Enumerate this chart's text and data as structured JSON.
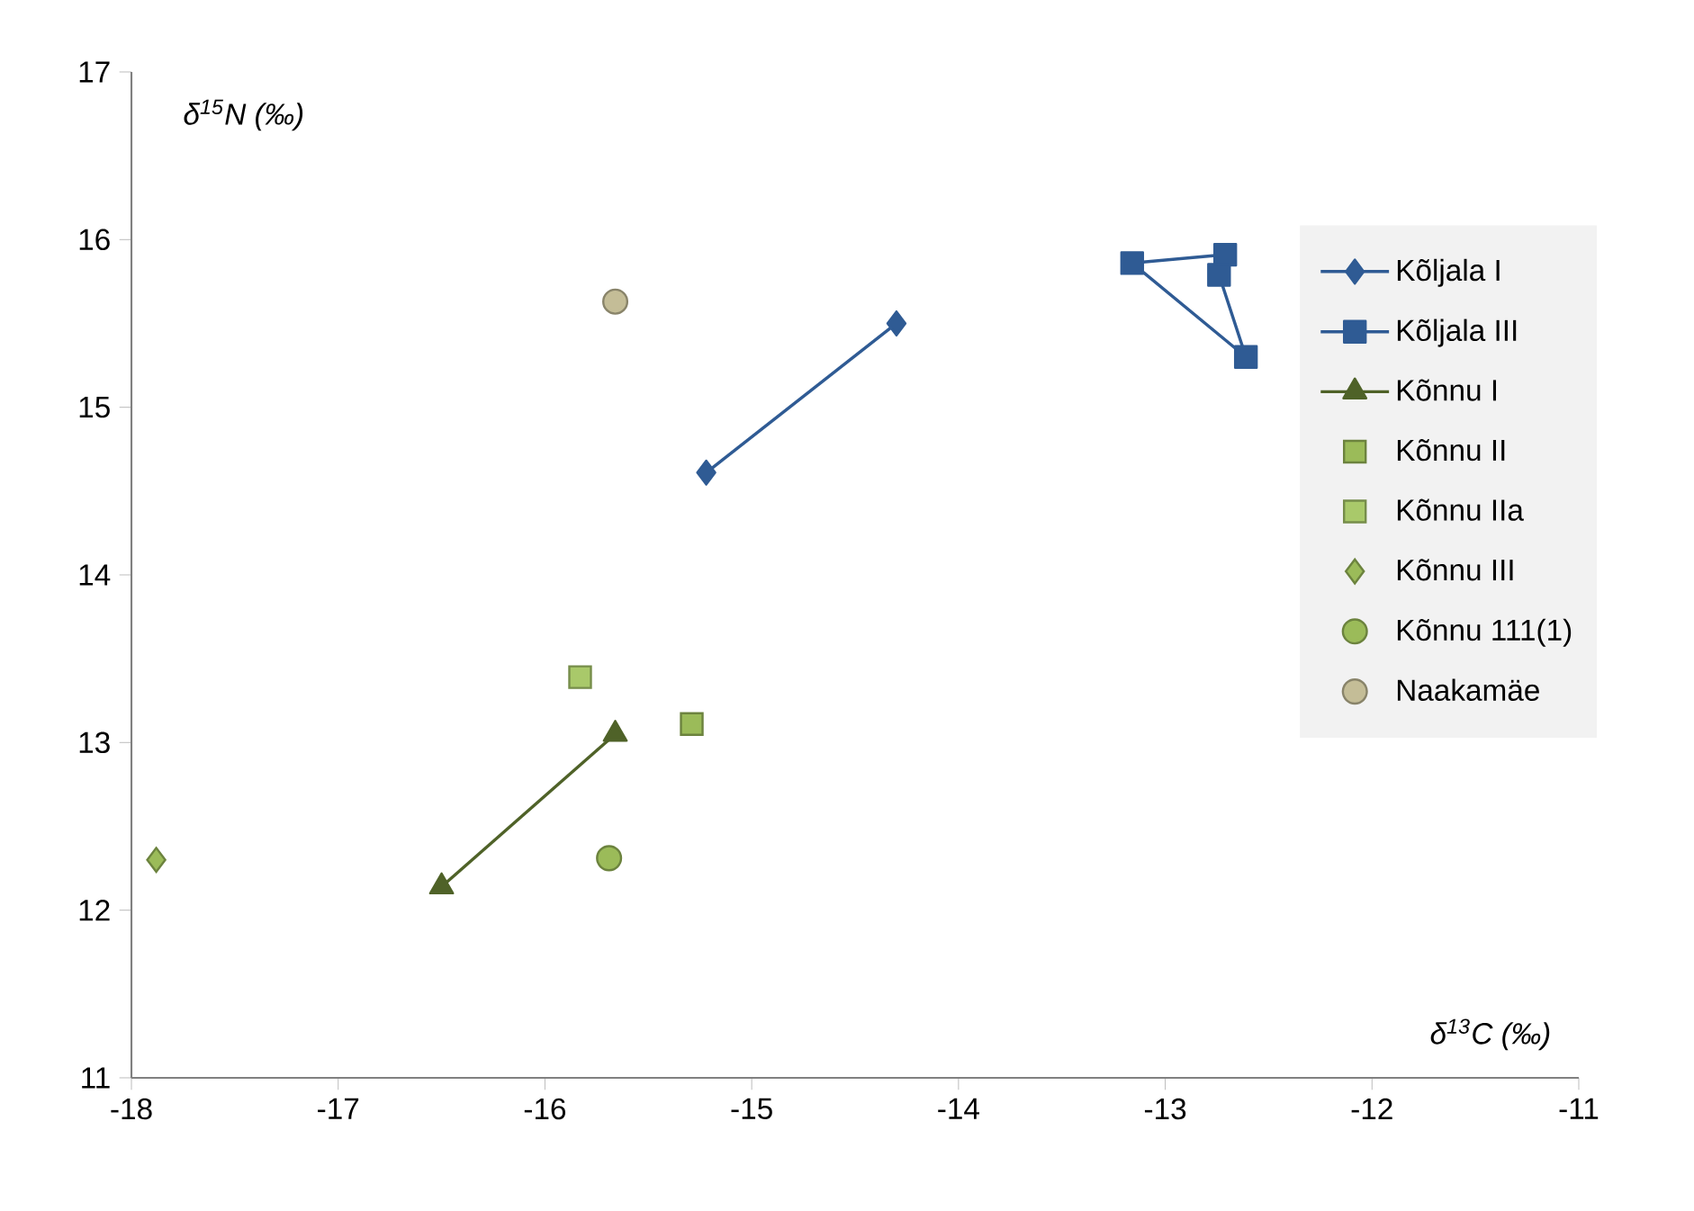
{
  "chart_data": {
    "type": "scatter",
    "xlabel": "δ$^{13}$C (‰)",
    "ylabel": "δ$^{15}$N (‰)",
    "xlim": [
      -18,
      -11
    ],
    "xticks": [
      -18,
      -17,
      -16,
      -15,
      -14,
      -13,
      -12,
      -11
    ],
    "ylim": [
      11,
      17
    ],
    "yticks": [
      11,
      12,
      13,
      14,
      15,
      16,
      17
    ],
    "grid": false,
    "legend": "right",
    "series": [
      {
        "name": "Kõljala I",
        "type": "line",
        "marker": "diamond",
        "color": "#2f5b94",
        "x": [
          -15.22,
          -14.3
        ],
        "values": [
          14.61,
          15.5
        ]
      },
      {
        "name": "Kõljala III",
        "type": "line",
        "marker": "square",
        "color": "#2f5b94",
        "x": [
          -12.71,
          -13.16,
          -12.61,
          -12.74
        ],
        "values": [
          15.91,
          15.86,
          15.3,
          15.79
        ]
      },
      {
        "name": "Kõnnu I",
        "type": "line",
        "marker": "triangle",
        "color": "#4f6228",
        "x": [
          -16.5,
          -15.66
        ],
        "values": [
          12.14,
          13.05
        ]
      },
      {
        "name": "Kõnnu II",
        "marker": "square",
        "color": "#9bbb59",
        "x": [
          -15.29
        ],
        "values": [
          13.11
        ]
      },
      {
        "name": "Kõnnu IIa",
        "marker": "square",
        "color": "#a9c96a",
        "x": [
          -15.83
        ],
        "values": [
          13.39
        ]
      },
      {
        "name": "Kõnnu III",
        "marker": "diamond",
        "color": "#9bbb59",
        "x": [
          -17.88
        ],
        "values": [
          12.3
        ]
      },
      {
        "name": "Kõnnu 111(1)",
        "marker": "circle",
        "color": "#9bbb59",
        "x": [
          -15.69
        ],
        "values": [
          12.31
        ]
      },
      {
        "name": "Naakamäe",
        "marker": "circle",
        "color": "#c4bd97",
        "x": [
          -15.66
        ],
        "values": [
          15.63
        ]
      }
    ]
  }
}
